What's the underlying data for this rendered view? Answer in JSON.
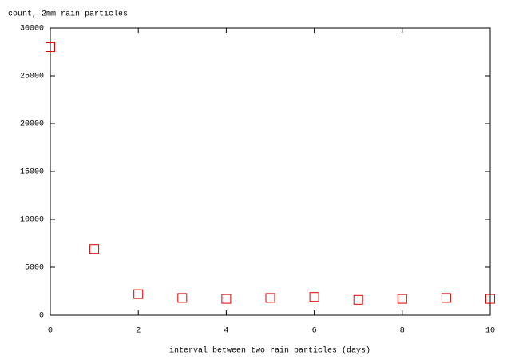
{
  "chart_data": {
    "type": "scatter",
    "y_label": "count, 2mm rain particles",
    "x_label": "interval between two rain particles (days)",
    "x": [
      0,
      1,
      2,
      3,
      4,
      5,
      6,
      7,
      8,
      9,
      10
    ],
    "series": [
      {
        "color": "#e00000",
        "values": [
          28000,
          6900,
          2200,
          1800,
          1700,
          1800,
          1900,
          1600,
          1700,
          1800,
          1700
        ]
      }
    ],
    "xlim": [
      0,
      10
    ],
    "xticks": [
      0,
      2,
      4,
      6,
      8,
      10
    ],
    "ylim": [
      0,
      30000
    ],
    "yticks": [
      0,
      5000,
      10000,
      15000,
      20000,
      25000,
      30000
    ]
  }
}
